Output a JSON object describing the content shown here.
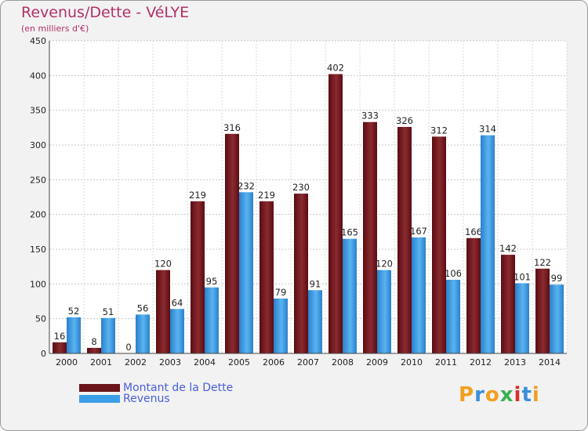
{
  "chart_data": {
    "type": "bar",
    "title": "Revenus/Dette - VéLYE",
    "subtitle": "(en milliers d'€)",
    "categories": [
      "2000",
      "2001",
      "2002",
      "2003",
      "2004",
      "2005",
      "2006",
      "2007",
      "2008",
      "2009",
      "2010",
      "2011",
      "2012",
      "2013",
      "2014"
    ],
    "series": [
      {
        "name": "Montant de la Dette",
        "color": "#7a1a1e",
        "values": [
          16,
          8,
          0,
          120,
          219,
          316,
          219,
          230,
          402,
          333,
          326,
          312,
          166,
          142,
          122
        ]
      },
      {
        "name": "Revenus",
        "color": "#3a9ee8",
        "values": [
          52,
          51,
          56,
          64,
          95,
          232,
          79,
          91,
          165,
          120,
          167,
          106,
          314,
          101,
          99
        ]
      }
    ],
    "ylim": [
      0,
      450
    ],
    "yticks": [
      0,
      50,
      100,
      150,
      200,
      250,
      300,
      350,
      400,
      450
    ],
    "grid": true,
    "legend": "bottom-left"
  },
  "logo_text": "Proxiti"
}
